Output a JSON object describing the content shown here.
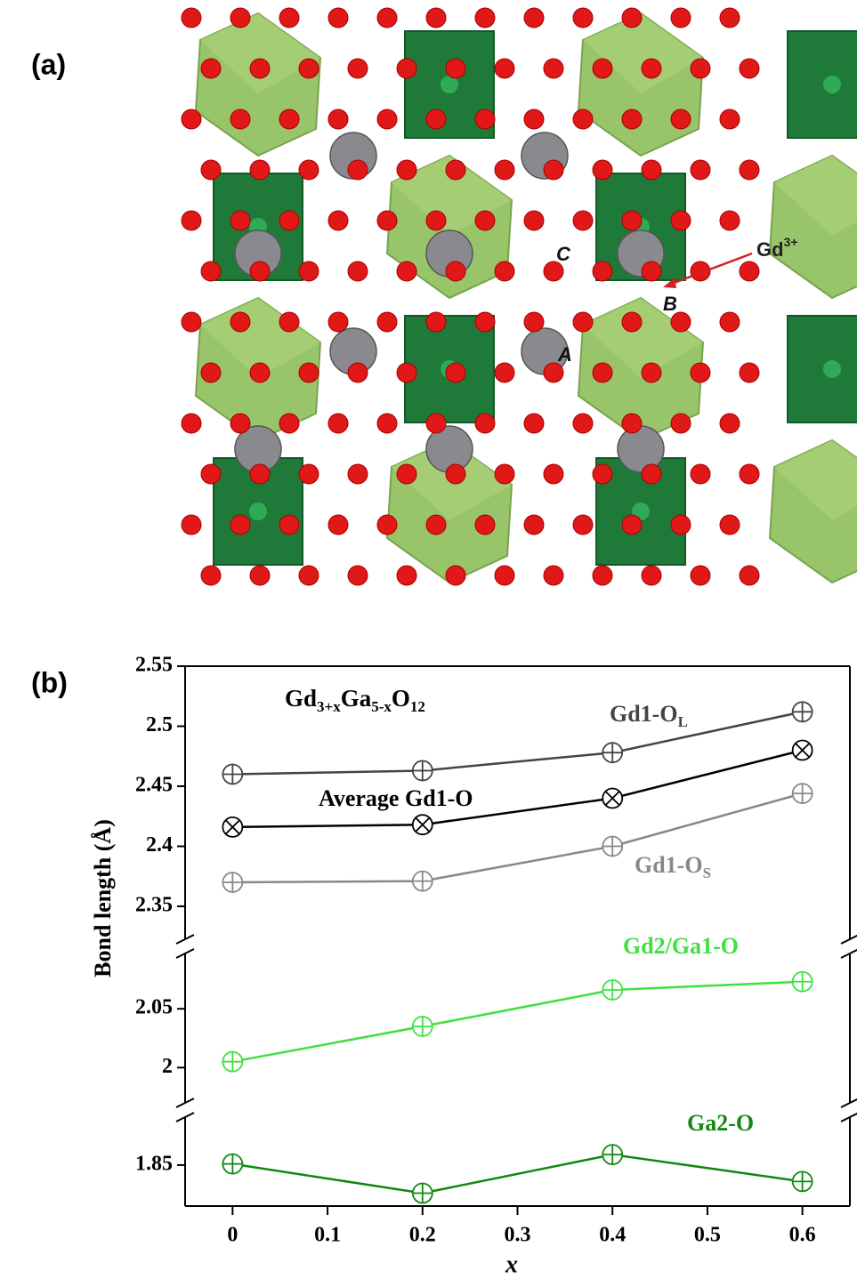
{
  "panel_a": {
    "label": "(a)",
    "ion_label": [
      "Gd",
      "3+"
    ],
    "site_labels": [
      "A",
      "B",
      "C"
    ]
  },
  "chart_data": {
    "type": "line",
    "panel_label": "(b)",
    "title": [
      "Gd",
      "3+x",
      "Ga",
      "5-x",
      "O",
      "12"
    ],
    "x_label": "x",
    "y_label": "Bond length (Å)",
    "x": [
      0,
      0.2,
      0.4,
      0.6
    ],
    "xlim": [
      -0.05,
      0.65
    ],
    "xticks": [
      0,
      0.1,
      0.2,
      0.3,
      0.4,
      0.5,
      0.6
    ],
    "y_segments": [
      {
        "ylim": [
          2.3226,
          2.55
        ],
        "yticks": [
          2.35,
          2.4,
          2.45,
          2.5,
          2.55
        ]
      },
      {
        "ylim": [
          1.97,
          2.097
        ],
        "yticks": [
          2,
          2.05
        ]
      },
      {
        "ylim": [
          1.815,
          1.891
        ],
        "yticks": [
          1.85
        ]
      }
    ],
    "series": [
      {
        "name": [
          "Gd1-O",
          "L"
        ],
        "color": "#444444",
        "marker": "circle-plus",
        "segment": 0,
        "values": [
          2.46,
          2.463,
          2.478,
          2.512
        ]
      },
      {
        "name": [
          "Average Gd1-O"
        ],
        "color": "#000000",
        "marker": "circle-x",
        "segment": 0,
        "values": [
          2.416,
          2.418,
          2.44,
          2.48
        ]
      },
      {
        "name": [
          "Gd1-O",
          "S"
        ],
        "color": "#888888",
        "marker": "circle-plus",
        "segment": 0,
        "values": [
          2.37,
          2.371,
          2.4,
          2.444
        ]
      },
      {
        "name": [
          "Gd2/Ga1-O"
        ],
        "color": "#3fe03f",
        "marker": "circle-plus",
        "segment": 1,
        "values": [
          2.005,
          2.035,
          2.066,
          2.073
        ]
      },
      {
        "name": [
          "Ga2-O"
        ],
        "color": "#118811",
        "marker": "circle-plus",
        "segment": 2,
        "values": [
          1.851,
          1.826,
          1.859,
          1.836
        ]
      }
    ]
  }
}
